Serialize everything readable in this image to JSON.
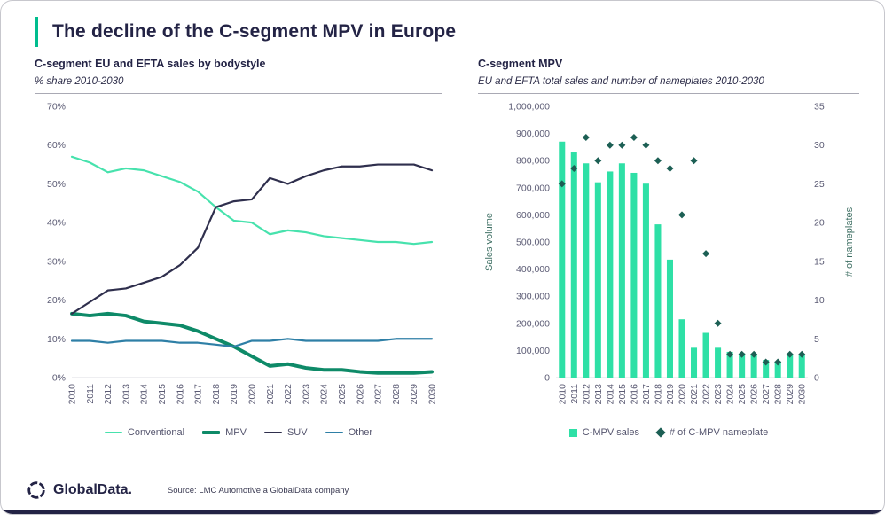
{
  "page": {
    "title": "The decline of the C-segment MPV in Europe"
  },
  "footer": {
    "brand": "GlobalData.",
    "source": "Source: LMC Automotive a GlobalData company"
  },
  "colors": {
    "accent": "#00BD8E",
    "title_navy": "#232345",
    "axis_text": "#5B5B74",
    "axis_label": "#3E6F63",
    "rule": "#A9A9B4",
    "baseline": "#DCDCE3"
  },
  "chart_data": [
    {
      "type": "line",
      "title": "C-segment EU and EFTA sales by bodystyle",
      "subtitle": "% share 2010-2030",
      "xlabel": "",
      "ylabel": "",
      "x": [
        2010,
        2011,
        2012,
        2013,
        2014,
        2015,
        2016,
        2017,
        2018,
        2019,
        2020,
        2021,
        2022,
        2023,
        2024,
        2025,
        2026,
        2027,
        2028,
        2029,
        2030
      ],
      "ylim": [
        0,
        70
      ],
      "ytick_step": 10,
      "ytick_suffix": "%",
      "grid": false,
      "legend_position": "bottom",
      "series": [
        {
          "name": "Conventional",
          "color": "#47E2AD",
          "stroke_width": 2.2,
          "values": [
            57,
            55.5,
            53,
            54,
            53.5,
            52,
            50.5,
            48,
            44,
            40.5,
            40,
            37,
            38,
            37.5,
            36.5,
            36,
            35.5,
            35,
            35,
            34.5,
            35
          ]
        },
        {
          "name": "MPV",
          "color": "#0E8A68",
          "stroke_width": 4,
          "values": [
            16.5,
            16,
            16.5,
            16,
            14.5,
            14,
            13.5,
            12,
            10,
            8,
            5.5,
            3,
            3.5,
            2.5,
            2,
            2,
            1.5,
            1.2,
            1.2,
            1.2,
            1.5
          ]
        },
        {
          "name": "SUV",
          "color": "#2F2F4D",
          "stroke_width": 2.2,
          "values": [
            16.5,
            19.5,
            22.5,
            23,
            24.5,
            26,
            29,
            33.5,
            44,
            45.5,
            46,
            51.5,
            50,
            52,
            53.5,
            54.5,
            54.5,
            55,
            55,
            55,
            53.5
          ]
        },
        {
          "name": "Other",
          "color": "#2E7FA6",
          "stroke_width": 2.2,
          "values": [
            9.5,
            9.5,
            9,
            9.5,
            9.5,
            9.5,
            9,
            9,
            8.5,
            8,
            9.5,
            9.5,
            10,
            9.5,
            9.5,
            9.5,
            9.5,
            9.5,
            10,
            10,
            10
          ]
        }
      ]
    },
    {
      "type": "bar+scatter",
      "title": "C-segment MPV",
      "subtitle": "EU and EFTA total sales and number of nameplates 2010-2030",
      "categories": [
        2010,
        2011,
        2012,
        2013,
        2014,
        2015,
        2016,
        2017,
        2018,
        2019,
        2020,
        2021,
        2022,
        2023,
        2024,
        2025,
        2026,
        2027,
        2028,
        2029,
        2030
      ],
      "left_axis": {
        "label": "Sales volume",
        "min": 0,
        "max": 1000000,
        "step": 100000
      },
      "right_axis": {
        "label": "# of nameplates",
        "min": 0,
        "max": 35,
        "step": 5
      },
      "grid": false,
      "legend_position": "bottom",
      "series": [
        {
          "name": "C-MPV sales",
          "type": "bar",
          "axis": "left",
          "color": "#2EE0A6",
          "values": [
            870000,
            830000,
            790000,
            720000,
            760000,
            790000,
            755000,
            715000,
            565000,
            435000,
            215000,
            110000,
            165000,
            110000,
            95000,
            90000,
            85000,
            65000,
            60000,
            85000,
            85000
          ]
        },
        {
          "name": "# of C-MPV nameplate",
          "type": "scatter",
          "marker": "diamond",
          "axis": "right",
          "color": "#1C5F54",
          "values": [
            25,
            27,
            31,
            28,
            30,
            30,
            31,
            30,
            28,
            27,
            21,
            28,
            16,
            7,
            3,
            3,
            3,
            2,
            2,
            3,
            3
          ]
        }
      ]
    }
  ]
}
